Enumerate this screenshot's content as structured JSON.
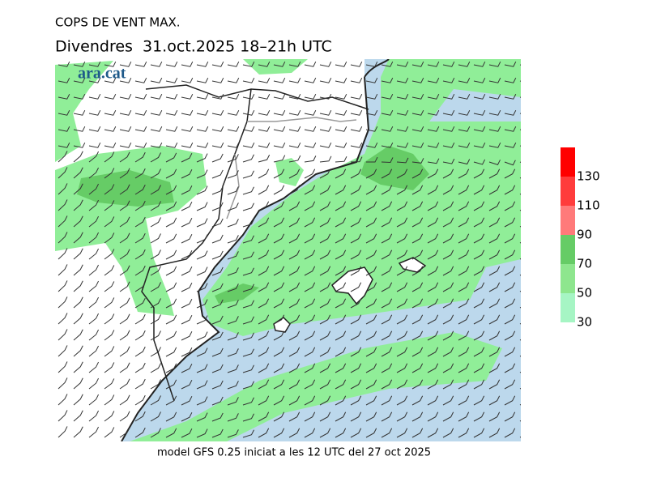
{
  "header": {
    "title": "COPS DE VENT MAX.",
    "subtitle": "Divendres  31.oct.2025 18–21h UTC"
  },
  "logo": "ara.cat",
  "legend": {
    "levels": [
      30,
      50,
      70,
      90,
      110,
      130
    ],
    "colors": [
      "#a6f5c4",
      "#8ee68e",
      "#66cc66",
      "#ff7a7a",
      "#ff3c3c",
      "#ff0000"
    ]
  },
  "footer": "model GFS 0.25 iniciat a les 12 UTC del 27 oct 2025"
}
